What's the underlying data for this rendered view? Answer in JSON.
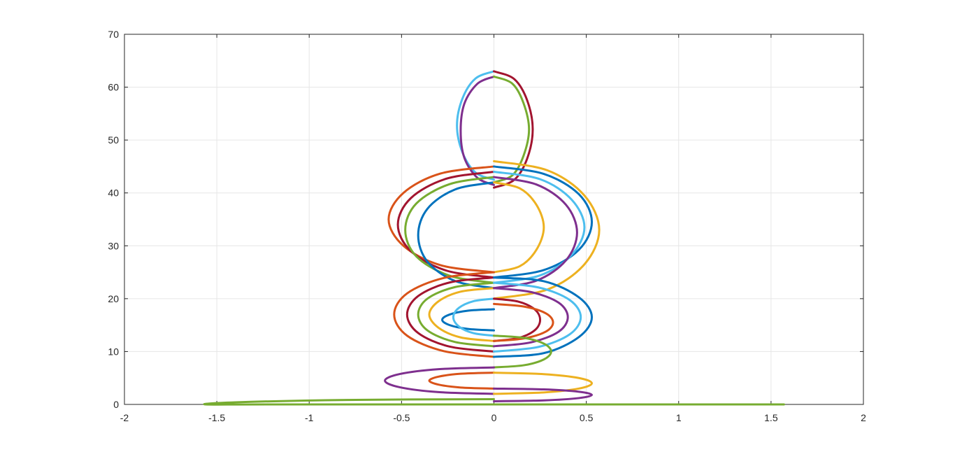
{
  "chart_data": {
    "type": "line",
    "xlim": [
      -2,
      2
    ],
    "xticks": [
      -2,
      -1.5,
      -1,
      -0.5,
      0,
      0.5,
      1,
      1.5,
      2
    ],
    "ylim": [
      0,
      70
    ],
    "yticks": [
      0,
      10,
      20,
      30,
      40,
      50,
      60,
      70
    ],
    "grid": true,
    "series": [
      {
        "color": "#4DBEEE",
        "x": [
          0,
          -0.1,
          -0.17,
          -0.2,
          -0.17,
          -0.1,
          0
        ],
        "y": [
          63,
          61.63,
          57.88,
          52.75,
          47.63,
          43.87,
          42.5
        ]
      },
      {
        "color": "#7E2F8E",
        "x": [
          0,
          -0.09,
          -0.16,
          -0.18,
          -0.16,
          -0.09,
          0
        ],
        "y": [
          62,
          60.63,
          56.88,
          51.75,
          46.63,
          42.87,
          41.5
        ]
      },
      {
        "color": "#A2142F",
        "x": [
          0,
          0.11,
          0.18,
          0.21,
          0.18,
          0.11,
          0
        ],
        "y": [
          63,
          61.53,
          57.5,
          52,
          46.5,
          42.47,
          41
        ]
      },
      {
        "color": "#77AC30",
        "x": [
          0,
          0.1,
          0.16,
          0.19,
          0.16,
          0.1,
          0
        ],
        "y": [
          62,
          60.66,
          57,
          52,
          47,
          43.34,
          42
        ]
      },
      {
        "color": "#D95319",
        "x": [
          0,
          -0.29,
          -0.49,
          -0.57,
          -0.49,
          -0.29,
          0
        ],
        "y": [
          45,
          43.66,
          40,
          35,
          30,
          26.34,
          25
        ]
      },
      {
        "color": "#A2142F",
        "x": [
          0,
          -0.26,
          -0.45,
          -0.52,
          -0.45,
          -0.26,
          0
        ],
        "y": [
          44,
          42.66,
          39,
          34,
          29,
          25.34,
          24
        ]
      },
      {
        "color": "#77AC30",
        "x": [
          0,
          -0.24,
          -0.42,
          -0.48,
          -0.42,
          -0.24,
          0
        ],
        "y": [
          43,
          41.66,
          38,
          33,
          28,
          24.34,
          23
        ]
      },
      {
        "color": "#0072BD",
        "x": [
          0,
          -0.21,
          -0.36,
          -0.41,
          -0.36,
          -0.21,
          0
        ],
        "y": [
          42,
          40.66,
          37,
          32,
          27,
          23.34,
          22
        ]
      },
      {
        "color": "#EDB120",
        "x": [
          0,
          0.29,
          0.49,
          0.57,
          0.49,
          0.29,
          0
        ],
        "y": [
          46,
          44.26,
          39.5,
          33,
          26.5,
          21.74,
          20
        ]
      },
      {
        "color": "#0072BD",
        "x": [
          0,
          0.27,
          0.46,
          0.53,
          0.46,
          0.27,
          0
        ],
        "y": [
          45,
          43.59,
          39.75,
          34.5,
          29.25,
          25.41,
          24
        ]
      },
      {
        "color": "#4DBEEE",
        "x": [
          0,
          0.25,
          0.42,
          0.49,
          0.42,
          0.25,
          0
        ],
        "y": [
          44,
          42.59,
          38.75,
          33.5,
          28.25,
          24.41,
          23
        ]
      },
      {
        "color": "#7E2F8E",
        "x": [
          0,
          0.23,
          0.39,
          0.45,
          0.39,
          0.23,
          0
        ],
        "y": [
          43,
          41.59,
          37.75,
          32.5,
          27.25,
          23.41,
          22
        ]
      },
      {
        "color": "#EDB120",
        "x": [
          0,
          0.14,
          0.23,
          0.27,
          0.23,
          0.14,
          0
        ],
        "y": [
          42,
          40.86,
          37.75,
          33.5,
          29.25,
          26.14,
          25
        ]
      },
      {
        "color": "#D95319",
        "x": [
          0,
          -0.27,
          -0.47,
          -0.54,
          -0.47,
          -0.27,
          0
        ],
        "y": [
          25,
          23.93,
          21,
          17,
          13,
          10.07,
          9
        ]
      },
      {
        "color": "#A2142F",
        "x": [
          0,
          -0.24,
          -0.41,
          -0.47,
          -0.41,
          -0.24,
          0
        ],
        "y": [
          24,
          23.06,
          20.5,
          17,
          13.5,
          10.94,
          10
        ]
      },
      {
        "color": "#77AC30",
        "x": [
          0,
          -0.21,
          -0.36,
          -0.41,
          -0.36,
          -0.21,
          0
        ],
        "y": [
          23,
          22.2,
          20,
          17,
          14,
          11.8,
          11
        ]
      },
      {
        "color": "#EDB120",
        "x": [
          0,
          -0.18,
          -0.3,
          -0.35,
          -0.3,
          -0.18,
          0
        ],
        "y": [
          22,
          21.33,
          19.5,
          17,
          14.5,
          12.67,
          12
        ]
      },
      {
        "color": "#0072BD",
        "x": [
          0,
          -0.14,
          -0.24,
          -0.28,
          -0.24,
          -0.14,
          0
        ],
        "y": [
          18,
          17.73,
          17,
          16,
          15,
          14.27,
          14
        ]
      },
      {
        "color": "#4DBEEE",
        "x": [
          0,
          -0.11,
          -0.19,
          -0.22,
          -0.19,
          -0.11,
          0
        ],
        "y": [
          20,
          19.53,
          18.25,
          16.5,
          14.75,
          13.47,
          13
        ]
      },
      {
        "color": "#0072BD",
        "x": [
          0,
          0.27,
          0.46,
          0.53,
          0.46,
          0.27,
          0
        ],
        "y": [
          24,
          23.3,
          20.25,
          16.5,
          12.75,
          9.7,
          9
        ]
      },
      {
        "color": "#4DBEEE",
        "x": [
          0,
          0.24,
          0.41,
          0.47,
          0.41,
          0.24,
          0
        ],
        "y": [
          23,
          22.13,
          19.75,
          16.5,
          13.25,
          10.87,
          10
        ]
      },
      {
        "color": "#7E2F8E",
        "x": [
          0,
          0.2,
          0.35,
          0.4,
          0.35,
          0.2,
          0
        ],
        "y": [
          22,
          21.26,
          19.25,
          16.5,
          13.75,
          11.74,
          11
        ]
      },
      {
        "color": "#A2142F",
        "x": [
          0,
          0.13,
          0.22,
          0.25,
          0.22,
          0.13,
          0
        ],
        "y": [
          20,
          19.46,
          18,
          16,
          14,
          12.54,
          12
        ]
      },
      {
        "color": "#D95319",
        "x": [
          0,
          0.16,
          0.28,
          0.32,
          0.28,
          0.16,
          0
        ],
        "y": [
          19,
          18.53,
          17.25,
          15.5,
          13.75,
          12.47,
          12
        ]
      },
      {
        "color": "#77AC30",
        "x": [
          0,
          0.16,
          0.27,
          0.31,
          0.27,
          0.16,
          0
        ],
        "y": [
          13,
          12.6,
          11.5,
          10,
          8.5,
          7.4,
          7
        ]
      },
      {
        "color": "#7E2F8E",
        "x": [
          0,
          -0.3,
          -0.51,
          -0.59,
          -0.51,
          -0.3,
          0
        ],
        "y": [
          7,
          6.67,
          5.75,
          4.5,
          3.25,
          2.33,
          2
        ]
      },
      {
        "color": "#D95319",
        "x": [
          0,
          -0.18,
          -0.3,
          -0.35,
          -0.3,
          -0.18,
          0
        ],
        "y": [
          6,
          5.8,
          5.25,
          4.5,
          3.75,
          3.2,
          3
        ]
      },
      {
        "color": "#EDB120",
        "x": [
          0,
          0.27,
          0.46,
          0.53,
          0.46,
          0.27,
          0
        ],
        "y": [
          6,
          5.73,
          5,
          4,
          3,
          2.27,
          2
        ]
      },
      {
        "color": "#7E2F8E",
        "x": [
          0,
          0.27,
          0.46,
          0.53,
          0.46,
          0.27,
          0
        ],
        "y": [
          3,
          2.84,
          2.4,
          1.8,
          1.2,
          0.76,
          0.6
        ]
      },
      {
        "color": "#77AC30",
        "x": [
          0,
          -0.8,
          -1.4,
          -1.56,
          -1.2,
          0,
          1.2,
          1.57
        ],
        "y": [
          1,
          0.85,
          0.4,
          0,
          0,
          0,
          0,
          0
        ]
      }
    ]
  }
}
